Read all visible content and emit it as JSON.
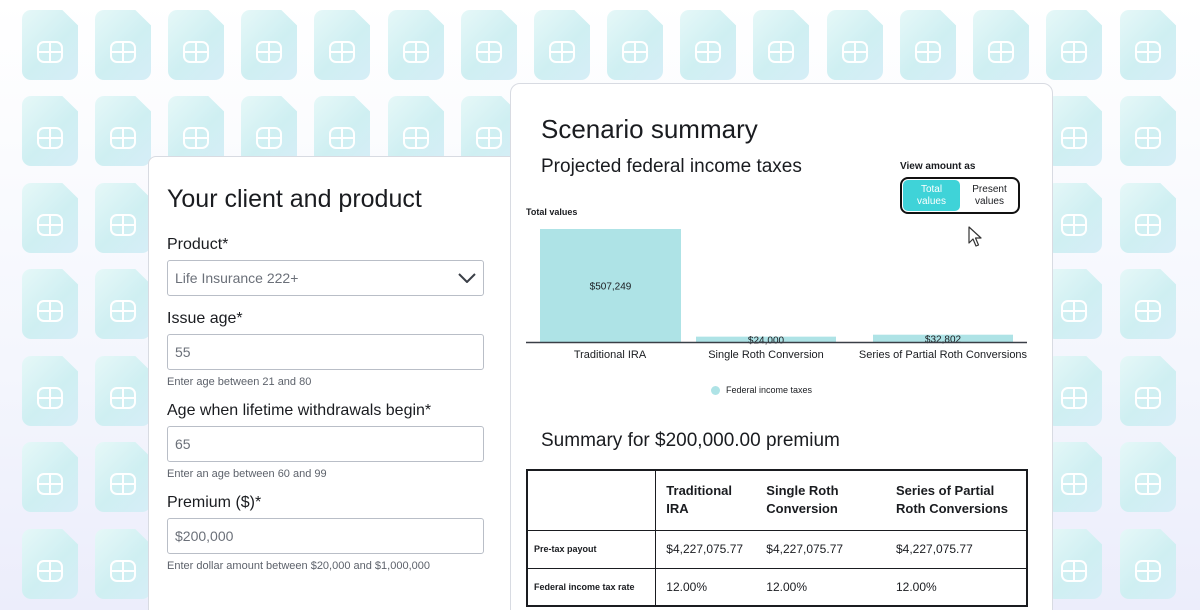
{
  "client_form": {
    "title": "Your client and product",
    "product": {
      "label": "Product*",
      "value": "Life Insurance 222+"
    },
    "issue_age": {
      "label": "Issue age*",
      "value": "55",
      "hint": "Enter age between 21 and 80"
    },
    "withdrawal_age": {
      "label": "Age when lifetime withdrawals begin*",
      "value": "65",
      "hint": "Enter an age between 60 and 99"
    },
    "premium": {
      "label": "Premium ($)*",
      "value": "$200,000",
      "hint": "Enter dollar amount between $20,000 and $1,000,000"
    }
  },
  "scenario": {
    "title": "Scenario summary",
    "subtitle": "Projected federal income taxes",
    "view_label": "View amount as",
    "toggle": {
      "active": "Total values",
      "inactive": "Present values"
    }
  },
  "chart_data": {
    "type": "bar",
    "caption": "Total values",
    "categories": [
      "Traditional IRA",
      "Single Roth Conversion",
      "Series of Partial Roth Conversions"
    ],
    "series": [
      {
        "name": "Federal income taxes",
        "values": [
          507249,
          24000,
          32802
        ],
        "labels": [
          "$507,249",
          "$24,000",
          "$32,802"
        ]
      }
    ],
    "ylim": [
      0,
      507249
    ],
    "color": "#aee3e6",
    "grid": false,
    "legend_position": "bottom-center"
  },
  "summary": {
    "title": "Summary for $200,000.00 premium",
    "columns": [
      "Traditional IRA",
      "Single Roth Conversion",
      "Series of Partial Roth Conversions"
    ],
    "rows": [
      {
        "label": "Pre-tax payout",
        "values": [
          "$4,227,075.77",
          "$4,227,075.77",
          "$4,227,075.77"
        ]
      },
      {
        "label": "Federal income tax rate",
        "values": [
          "12.00%",
          "12.00%",
          "12.00%"
        ]
      }
    ]
  },
  "colors": {
    "accent": "#3fd3d8",
    "bar": "#aee3e6",
    "border": "#1a1c20"
  }
}
